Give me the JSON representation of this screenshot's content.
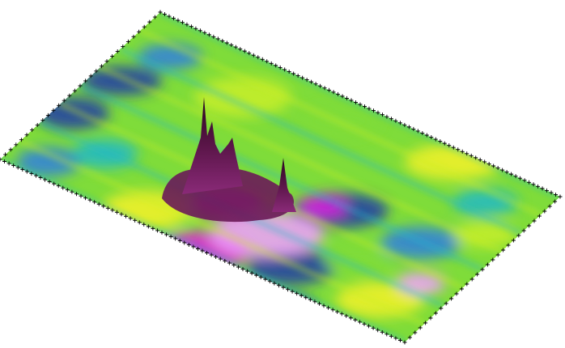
{
  "image": {
    "subject": "3d-surface-plot",
    "background_color": "#ffffff",
    "palette": [
      "#1f3aa8",
      "#2f7fe0",
      "#22b8c8",
      "#7fdc3a",
      "#c8ef2a",
      "#f3f12a",
      "#f0a0ff",
      "#e020e0",
      "#7a1a66",
      "#3d0d2f"
    ],
    "marker_color": "#000000",
    "marker_shape": "plus"
  }
}
